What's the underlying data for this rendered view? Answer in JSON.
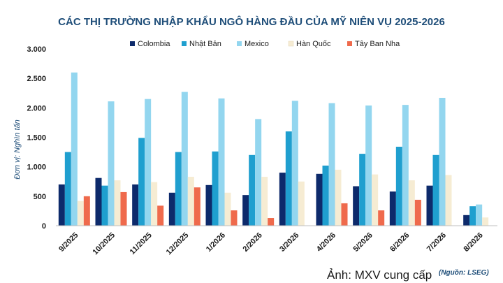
{
  "credit": "Ảnh: MXV cung cấp",
  "source": "(Nguồn: LSEG)",
  "chart_data": {
    "type": "bar",
    "title": "CÁC THỊ TRƯỜNG NHẬP KHẨU NGÔ HÀNG ĐẦU CỦA MỸ NIÊN VỤ 2025-2026",
    "ylabel": "Đơn vị: Nghìn tấn",
    "xlabel": "",
    "ylim": [
      0,
      3000
    ],
    "yticks": [
      0,
      500,
      1000,
      1500,
      2000,
      2500,
      3000
    ],
    "ytick_labels": [
      "0",
      "500",
      "1.000",
      "1.500",
      "2.000",
      "2.500",
      "3.000"
    ],
    "grid": false,
    "legend": "top",
    "categories": [
      "9/2025",
      "10/2025",
      "11/2025",
      "12/2025",
      "1/2026",
      "2/2026",
      "3/2026",
      "4/2026",
      "5/2026",
      "6/2026",
      "7/2026",
      "8/2026"
    ],
    "series": [
      {
        "name": "Colombia",
        "color": "#0d2a6b",
        "values": [
          700,
          810,
          700,
          560,
          690,
          520,
          900,
          880,
          670,
          580,
          680,
          180
        ]
      },
      {
        "name": "Nhật Bản",
        "color": "#1f9fcf",
        "values": [
          1250,
          680,
          1490,
          1250,
          1260,
          1200,
          1600,
          1020,
          1220,
          1340,
          1200,
          330
        ]
      },
      {
        "name": "Mexico",
        "color": "#93d6ef",
        "values": [
          2600,
          2110,
          2150,
          2270,
          2160,
          1810,
          2120,
          2080,
          2040,
          2050,
          2170,
          360
        ]
      },
      {
        "name": "Hàn Quốc",
        "color": "#f6ecd3",
        "values": [
          420,
          770,
          740,
          830,
          560,
          830,
          750,
          950,
          870,
          770,
          860,
          140
        ]
      },
      {
        "name": "Tây Ban Nha",
        "color": "#ef6a4c",
        "values": [
          500,
          570,
          340,
          650,
          260,
          130,
          0,
          380,
          260,
          440,
          0,
          0
        ]
      }
    ]
  }
}
